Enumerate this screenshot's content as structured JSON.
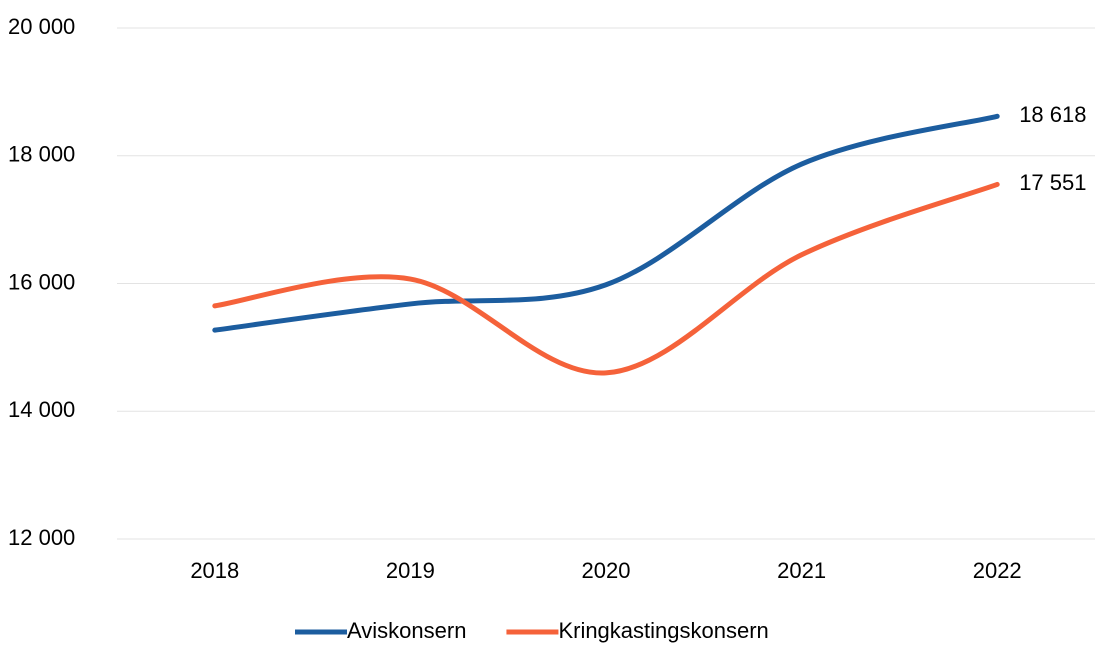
{
  "chart_data": {
    "type": "line",
    "categories": [
      "2018",
      "2019",
      "2020",
      "2021",
      "2022"
    ],
    "series": [
      {
        "name": "Aviskonsern",
        "color": "#1c5d9f",
        "values": [
          15270,
          15680,
          15980,
          17870,
          18618
        ],
        "value_labels": [
          null,
          null,
          null,
          null,
          "18 618"
        ]
      },
      {
        "name": "Kringkastingskonsern",
        "color": "#f5623a",
        "values": [
          15650,
          16070,
          14600,
          16450,
          17551
        ],
        "value_labels": [
          null,
          null,
          null,
          null,
          "17 551"
        ]
      }
    ],
    "ylim": [
      12000,
      20000
    ],
    "yticks": [
      {
        "value": 12000,
        "label": "12 000"
      },
      {
        "value": 14000,
        "label": "14 000"
      },
      {
        "value": 16000,
        "label": "16 000"
      },
      {
        "value": 18000,
        "label": "18 000"
      },
      {
        "value": 20000,
        "label": "20 000"
      }
    ],
    "grid": true,
    "smooth": true,
    "legend": "bottom"
  }
}
